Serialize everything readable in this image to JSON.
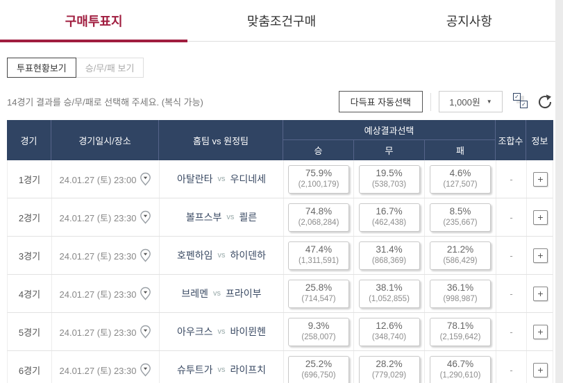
{
  "tabs": [
    {
      "label": "구매투표지",
      "active": true
    },
    {
      "label": "맞춤조건구매",
      "active": false
    },
    {
      "label": "공지사항",
      "active": false
    }
  ],
  "view_toggle": {
    "active_label": "투표현황보기",
    "inactive_label": "승/무/패 보기"
  },
  "instruction": "14경기 결과를 승/무/패로 선택해 주세요. (복식 가능)",
  "controls": {
    "auto_select_label": "다득표 자동선택",
    "amount_value": "1,000원",
    "amount_caret": "▼",
    "check_glyph": "✓"
  },
  "table": {
    "headers": {
      "match": "경기",
      "datetime": "경기일시/장소",
      "teams": "홈팀  vs  원정팀",
      "prediction": "예상결과선택",
      "win": "승",
      "draw": "무",
      "lose": "패",
      "combo": "조합수",
      "info": "정보"
    },
    "labels": {
      "vs": "vs",
      "plus": "+"
    },
    "rows": [
      {
        "match": "1경기",
        "datetime": "24.01.27 (토) 23:00",
        "home": "아탈란타",
        "away": "우디네세",
        "win": {
          "pct": "75.9%",
          "count": "(2,100,179)"
        },
        "draw": {
          "pct": "19.5%",
          "count": "(538,703)"
        },
        "lose": {
          "pct": "4.6%",
          "count": "(127,507)"
        },
        "combo": "-"
      },
      {
        "match": "2경기",
        "datetime": "24.01.27 (토) 23:30",
        "home": "볼프스부",
        "away": "쾰른",
        "win": {
          "pct": "74.8%",
          "count": "(2,068,284)"
        },
        "draw": {
          "pct": "16.7%",
          "count": "(462,438)"
        },
        "lose": {
          "pct": "8.5%",
          "count": "(235,667)"
        },
        "combo": "-"
      },
      {
        "match": "3경기",
        "datetime": "24.01.27 (토) 23:30",
        "home": "호펜하임",
        "away": "하이덴하",
        "win": {
          "pct": "47.4%",
          "count": "(1,311,591)"
        },
        "draw": {
          "pct": "31.4%",
          "count": "(868,369)"
        },
        "lose": {
          "pct": "21.2%",
          "count": "(586,429)"
        },
        "combo": "-"
      },
      {
        "match": "4경기",
        "datetime": "24.01.27 (토) 23:30",
        "home": "브레멘",
        "away": "프라이부",
        "win": {
          "pct": "25.8%",
          "count": "(714,547)"
        },
        "draw": {
          "pct": "38.1%",
          "count": "(1,052,855)"
        },
        "lose": {
          "pct": "36.1%",
          "count": "(998,987)"
        },
        "combo": "-"
      },
      {
        "match": "5경기",
        "datetime": "24.01.27 (토) 23:30",
        "home": "아우크스",
        "away": "바이뮌헨",
        "win": {
          "pct": "9.3%",
          "count": "(258,007)"
        },
        "draw": {
          "pct": "12.6%",
          "count": "(348,740)"
        },
        "lose": {
          "pct": "78.1%",
          "count": "(2,159,642)"
        },
        "combo": "-"
      },
      {
        "match": "6경기",
        "datetime": "24.01.27 (토) 23:30",
        "home": "슈투트가",
        "away": "라이프치",
        "win": {
          "pct": "25.2%",
          "count": "(696,750)"
        },
        "draw": {
          "pct": "28.2%",
          "count": "(779,029)"
        },
        "lose": {
          "pct": "46.7%",
          "count": "(1,290,610)"
        },
        "combo": "-"
      }
    ]
  },
  "colors": {
    "accent_red": "#a01d3f",
    "header_navy": "#304463"
  }
}
